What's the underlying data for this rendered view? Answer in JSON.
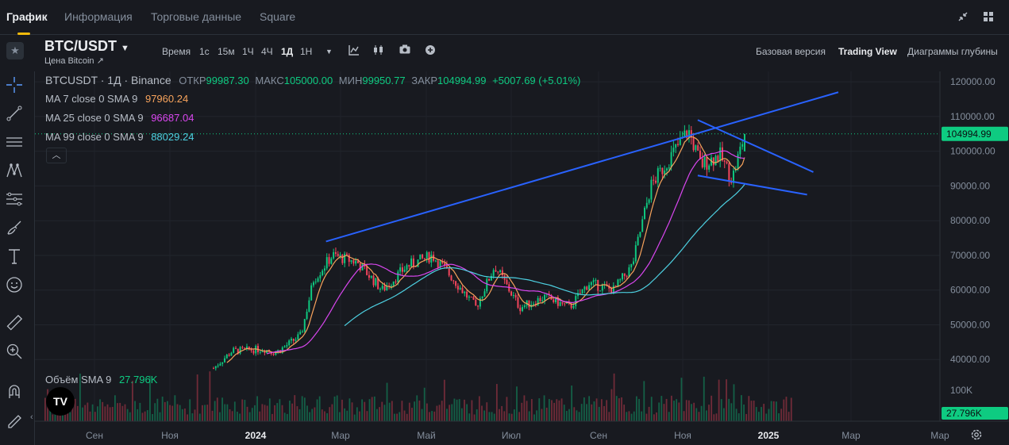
{
  "tabs": [
    {
      "label": "График",
      "active": true
    },
    {
      "label": "Информация"
    },
    {
      "label": "Торговые данные"
    },
    {
      "label": "Square"
    }
  ],
  "header": {
    "pair": "BTC/USDT",
    "pair_sub": "Цена Bitcoin ↗",
    "time_label": "Время",
    "timeframes": [
      "1с",
      "15м",
      "1Ч",
      "4Ч",
      "1Д",
      "1Н"
    ],
    "active_timeframe": "1Д",
    "views": [
      "Базовая версия",
      "Trading View",
      "Диаграммы глубины"
    ],
    "active_view": "Trading View"
  },
  "icons": {
    "top_right": [
      "compress-icon",
      "grid-icon"
    ],
    "chart_tools": [
      "indicator-icon",
      "chart-type-icon",
      "camera-icon",
      "add-icon"
    ],
    "toolbar": [
      "crosshair-icon",
      "trend-line-icon",
      "parallel-lines-icon",
      "pattern-icon",
      "fib-icon",
      "brush-icon",
      "text-icon",
      "emoji-icon",
      "ruler-icon",
      "zoom-icon",
      "magnet-icon",
      "lock-pencil-icon"
    ]
  },
  "legend": {
    "symbol": "BTCUSDT · 1Д · Binance",
    "open_label": "ОТКР",
    "open": "99987.30",
    "high_label": "МАКС",
    "high": "105000.00",
    "low_label": "МИН",
    "low": "99950.77",
    "close_label": "ЗАКР",
    "close": "104994.99",
    "change": "+5007.69 (+5.01%)",
    "ma": [
      {
        "label": "MA 7 close 0 SMA 9",
        "value": "97960.24",
        "color": "#f7a35c"
      },
      {
        "label": "MA 25 close 0 SMA 9",
        "value": "96687.04",
        "color": "#d946ef"
      },
      {
        "label": "MA 99 close 0 SMA 9",
        "value": "88029.24",
        "color": "#4dd0e1"
      }
    ],
    "volume_label": "Объём SMA 9",
    "volume_value": "27.796K"
  },
  "colors": {
    "up": "#0ecb81",
    "down": "#f6465d",
    "trendline": "#2962ff",
    "background": "#181a20"
  },
  "chart_data": {
    "type": "candlestick",
    "y_ticks": [
      120000,
      110000,
      100000,
      90000,
      80000,
      70000,
      60000,
      50000,
      40000
    ],
    "y_tick_labels": [
      "120000.00",
      "110000.00",
      "100000.00",
      "90000.00",
      "80000.00",
      "70000.00",
      "60000.00",
      "50000.00",
      "40000.00"
    ],
    "ylim": [
      38000,
      123000
    ],
    "last_price": "104994.99",
    "volume_tick": "100K",
    "volume_last": "27.796K",
    "x_labels": [
      "Сен",
      "Ноя",
      "2024",
      "Мар",
      "Май",
      "Июл",
      "Сен",
      "Ноя",
      "2025",
      "Мар",
      "Мар"
    ],
    "x_label_bold": [
      "2024",
      "2025"
    ],
    "price_keypoints": [
      {
        "t": 0,
        "p": 37500
      },
      {
        "t": 0.03,
        "p": 42500
      },
      {
        "t": 0.08,
        "p": 43000
      },
      {
        "t": 0.1,
        "p": 42000
      },
      {
        "t": 0.14,
        "p": 47000
      },
      {
        "t": 0.16,
        "p": 63000
      },
      {
        "t": 0.19,
        "p": 70000
      },
      {
        "t": 0.23,
        "p": 68000
      },
      {
        "t": 0.27,
        "p": 60000
      },
      {
        "t": 0.31,
        "p": 67000
      },
      {
        "t": 0.35,
        "p": 70000
      },
      {
        "t": 0.38,
        "p": 64000
      },
      {
        "t": 0.42,
        "p": 55000
      },
      {
        "t": 0.45,
        "p": 67000
      },
      {
        "t": 0.49,
        "p": 55000
      },
      {
        "t": 0.53,
        "p": 58000
      },
      {
        "t": 0.57,
        "p": 55000
      },
      {
        "t": 0.6,
        "p": 62000
      },
      {
        "t": 0.64,
        "p": 60000
      },
      {
        "t": 0.67,
        "p": 67000
      },
      {
        "t": 0.7,
        "p": 90000
      },
      {
        "t": 0.73,
        "p": 98000
      },
      {
        "t": 0.76,
        "p": 106000
      },
      {
        "t": 0.78,
        "p": 96000
      },
      {
        "t": 0.81,
        "p": 99000
      },
      {
        "t": 0.83,
        "p": 92000
      },
      {
        "t": 0.85,
        "p": 105000
      }
    ],
    "trendlines": [
      {
        "from": {
          "t": 0.18,
          "p": 74000
        },
        "to": {
          "t": 1.0,
          "p": 117000
        }
      },
      {
        "from": {
          "t": 0.775,
          "p": 109000
        },
        "to": {
          "t": 0.96,
          "p": 94000
        }
      },
      {
        "from": {
          "t": 0.775,
          "p": 93000
        },
        "to": {
          "t": 0.95,
          "p": 87500
        }
      }
    ]
  }
}
